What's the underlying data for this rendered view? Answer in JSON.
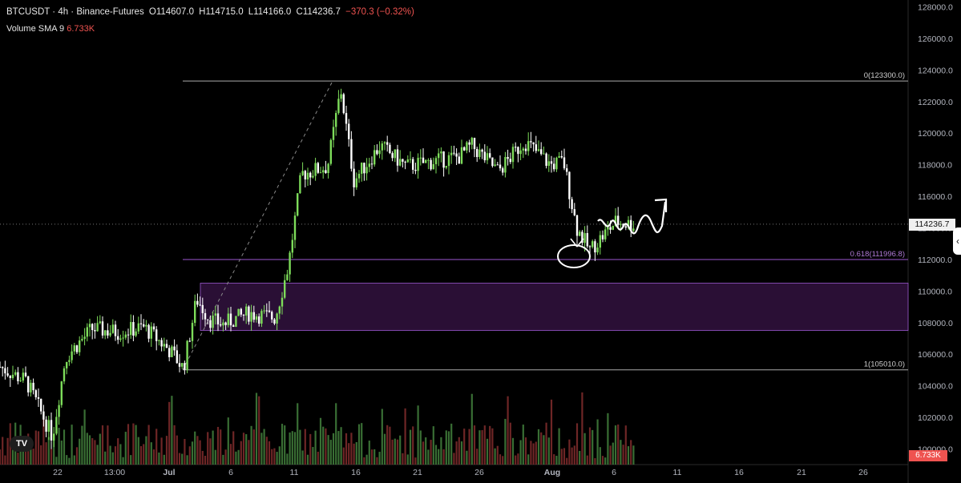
{
  "header": {
    "symbol": "BTCUSDT · 4h · Binance-Futures",
    "open": "O114607.0",
    "high": "H114715.0",
    "low": "L114166.0",
    "close": "C114236.7",
    "change": "−370.3 (−0.32%)"
  },
  "volume_indicator": {
    "label": "Volume SMA 9",
    "value": "6.733K"
  },
  "price_axis_labels": [
    "128000.0",
    "126000.0",
    "124000.0",
    "122000.0",
    "120000.0",
    "118000.0",
    "116000.0",
    "114000.0",
    "112000.0",
    "110000.0",
    "108000.0",
    "106000.0",
    "104000.0",
    "102000.0",
    "100000.0"
  ],
  "time_axis_labels": [
    "22",
    "13:00",
    "Jul",
    "6",
    "11",
    "16",
    "21",
    "26",
    "Aug",
    "6",
    "11",
    "16",
    "21",
    "26"
  ],
  "current_price_tag": "114236.7",
  "volume_tag": "6.733K",
  "fib_labels": {
    "top": "0(123300.0)",
    "mid": "0.618(111996.8)",
    "bottom": "1(105010.0)"
  },
  "colors": {
    "background": "#000000",
    "up": "#7ddc5a",
    "down": "#ffffff",
    "fib": "#9b59d0",
    "zone": "#2a0f35",
    "vol_down": "#ef5350",
    "vol_up": "#4caf50"
  },
  "chart_data": {
    "type": "candlestick",
    "symbol": "BTCUSDT",
    "interval": "4h",
    "ylim": [
      99000,
      128500
    ],
    "y_ticks": [
      100000,
      102000,
      104000,
      106000,
      108000,
      110000,
      112000,
      114000,
      116000,
      118000,
      120000,
      122000,
      124000,
      126000,
      128000
    ],
    "x_ticks": [
      "22",
      "13:00",
      "Jul",
      "6",
      "11",
      "16",
      "21",
      "26",
      "Aug",
      "6",
      "11",
      "16",
      "21",
      "26"
    ],
    "close_path": [
      {
        "x": "Jun 18",
        "y": 105200
      },
      {
        "x": "Jun 20",
        "y": 104300
      },
      {
        "x": "Jun 22",
        "y": 100800
      },
      {
        "x": "Jun 23",
        "y": 105800
      },
      {
        "x": "Jun 25",
        "y": 107600
      },
      {
        "x": "Jun 27",
        "y": 107400
      },
      {
        "x": "Jun 29",
        "y": 107700
      },
      {
        "x": "Jul 1",
        "y": 106200
      },
      {
        "x": "Jul 2",
        "y": 105100
      },
      {
        "x": "Jul 3",
        "y": 109500
      },
      {
        "x": "Jul 4",
        "y": 108200
      },
      {
        "x": "Jul 5",
        "y": 107900
      },
      {
        "x": "Jul 7",
        "y": 108600
      },
      {
        "x": "Jul 9",
        "y": 108300
      },
      {
        "x": "Jul 10",
        "y": 111600
      },
      {
        "x": "Jul 11",
        "y": 117400
      },
      {
        "x": "Jul 13",
        "y": 117900
      },
      {
        "x": "Jul 14",
        "y": 122800
      },
      {
        "x": "Jul 15",
        "y": 117000
      },
      {
        "x": "Jul 17",
        "y": 119200
      },
      {
        "x": "Jul 19",
        "y": 117900
      },
      {
        "x": "Jul 21",
        "y": 118200
      },
      {
        "x": "Jul 23",
        "y": 118500
      },
      {
        "x": "Jul 24",
        "y": 119200
      },
      {
        "x": "Jul 26",
        "y": 117600
      },
      {
        "x": "Jul 27",
        "y": 118500
      },
      {
        "x": "Jul 28",
        "y": 119500
      },
      {
        "x": "Jul 30",
        "y": 118000
      },
      {
        "x": "Jul 31",
        "y": 118200
      },
      {
        "x": "Aug 1",
        "y": 114000
      },
      {
        "x": "Aug 2",
        "y": 112600
      },
      {
        "x": "Aug 3",
        "y": 113500
      },
      {
        "x": "Aug 4",
        "y": 114400
      },
      {
        "x": "Aug 5",
        "y": 114237
      }
    ],
    "fibonacci": [
      {
        "level": "0",
        "price": 123300.0
      },
      {
        "level": "0.618",
        "price": 111996.8
      },
      {
        "level": "1",
        "price": 105010.0
      }
    ],
    "zone": {
      "from": 107500,
      "to": 110500
    },
    "current_price": 114236.7,
    "volume_sma": "6.733K"
  }
}
